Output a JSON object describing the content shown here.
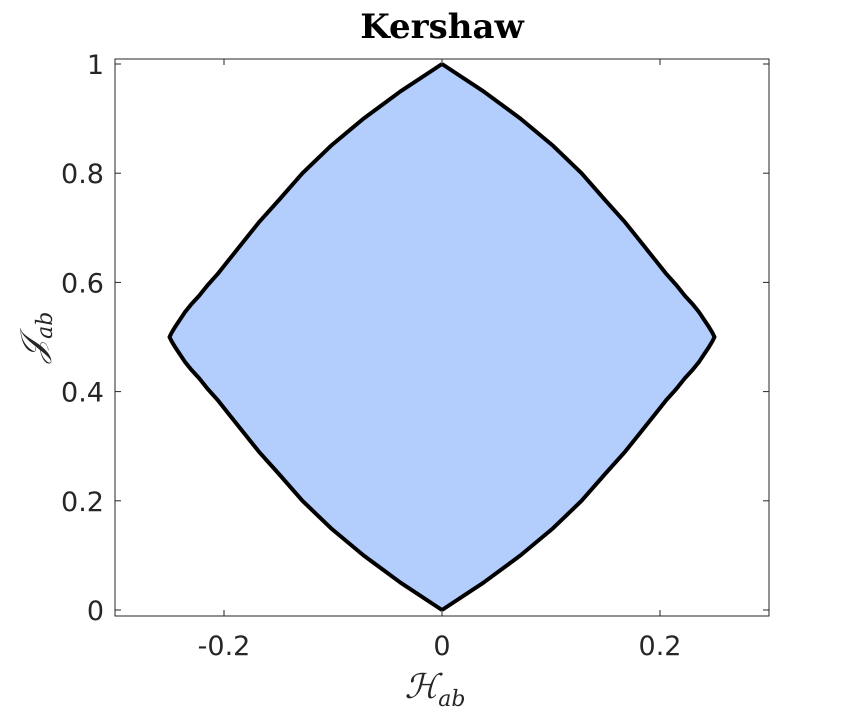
{
  "chart_data": {
    "type": "area",
    "title": "Kershaw",
    "xlabel": "ℋ",
    "xlabel_sub": "ab",
    "ylabel": "𝒥",
    "ylabel_sub": "ab",
    "xlim": [
      -0.3,
      0.3
    ],
    "ylim": [
      0,
      1
    ],
    "xticks": [
      -0.2,
      0,
      0.2
    ],
    "xtick_labels": [
      "-0.2",
      "0",
      "0.2"
    ],
    "yticks": [
      0,
      0.2,
      0.4,
      0.6,
      0.8,
      1
    ],
    "ytick_labels": [
      "0",
      "0.2",
      "0.4",
      "0.6",
      "0.8",
      "1"
    ],
    "grid": false,
    "fill_color": "#b3cdfd",
    "boundary_color": "#000000",
    "series": [
      {
        "boundary": "right",
        "x": [
          0,
          0.038,
          0.072,
          0.102,
          0.128,
          0.15,
          0.168,
          0.184,
          0.196,
          0.206,
          0.215,
          0.223,
          0.23,
          0.236,
          0.241,
          0.245,
          0.248,
          0.25,
          0.248,
          0.245,
          0.241,
          0.236,
          0.23,
          0.223,
          0.215,
          0.206,
          0.196,
          0.184,
          0.168,
          0.15,
          0.128,
          0.102,
          0.072,
          0.038,
          0
        ],
        "y": [
          0,
          0.05,
          0.1,
          0.15,
          0.2,
          0.25,
          0.29,
          0.33,
          0.36,
          0.385,
          0.405,
          0.425,
          0.44,
          0.455,
          0.47,
          0.482,
          0.492,
          0.5,
          0.508,
          0.518,
          0.53,
          0.545,
          0.56,
          0.575,
          0.595,
          0.615,
          0.64,
          0.67,
          0.71,
          0.75,
          0.8,
          0.85,
          0.9,
          0.95,
          1
        ]
      },
      {
        "boundary": "left",
        "x": [
          0,
          -0.038,
          -0.072,
          -0.102,
          -0.128,
          -0.15,
          -0.168,
          -0.184,
          -0.196,
          -0.206,
          -0.215,
          -0.223,
          -0.23,
          -0.236,
          -0.241,
          -0.245,
          -0.248,
          -0.25,
          -0.248,
          -0.245,
          -0.241,
          -0.236,
          -0.23,
          -0.223,
          -0.215,
          -0.206,
          -0.196,
          -0.184,
          -0.168,
          -0.15,
          -0.128,
          -0.102,
          -0.072,
          -0.038,
          0
        ],
        "y": [
          0,
          0.05,
          0.1,
          0.15,
          0.2,
          0.25,
          0.29,
          0.33,
          0.36,
          0.385,
          0.405,
          0.425,
          0.44,
          0.455,
          0.47,
          0.482,
          0.492,
          0.5,
          0.508,
          0.518,
          0.53,
          0.545,
          0.56,
          0.575,
          0.595,
          0.615,
          0.64,
          0.67,
          0.71,
          0.75,
          0.8,
          0.85,
          0.9,
          0.95,
          1
        ]
      }
    ]
  }
}
